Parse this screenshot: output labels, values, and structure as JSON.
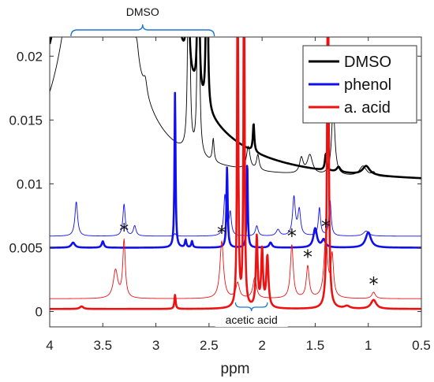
{
  "chart_data": {
    "type": "line",
    "xlabel": "ppm",
    "ylabel": "",
    "xlim": [
      4,
      0.5
    ],
    "ylim": [
      -0.0012,
      0.0215
    ],
    "x_reversed": true,
    "grid": false,
    "legend_position": "top-right",
    "colors": {
      "dmso": "#000000",
      "phenol": "#1010ee",
      "acid": "#ee1111",
      "bracket": "#1f77d4"
    },
    "x_ticks": [
      {
        "value": 4,
        "label": "4"
      },
      {
        "value": 3.5,
        "label": "3.5"
      },
      {
        "value": 3,
        "label": "3"
      },
      {
        "value": 2.5,
        "label": "2.5"
      },
      {
        "value": 2,
        "label": "2"
      },
      {
        "value": 1.5,
        "label": "1.5"
      },
      {
        "value": 1,
        "label": "1"
      },
      {
        "value": 0.5,
        "label": "0.5"
      }
    ],
    "y_ticks": [
      {
        "value": 0,
        "label": "0"
      },
      {
        "value": 0.005,
        "label": "0.005"
      },
      {
        "value": 0.01,
        "label": "0.01"
      },
      {
        "value": 0.015,
        "label": "0.015"
      },
      {
        "value": 0.02,
        "label": "0.02"
      }
    ],
    "legend": [
      {
        "label": "DMSO",
        "key": "dmso"
      },
      {
        "label": "phenol",
        "key": "phenol"
      },
      {
        "label": "a. acid",
        "key": "acid"
      }
    ],
    "annotations": {
      "dmso_bracket": {
        "label": "DMSO",
        "x_start": 3.8,
        "x_end": 2.45
      },
      "acetic_bracket": {
        "label": "acetic acid",
        "x_start": 2.25,
        "x_end": 1.95
      },
      "stars": [
        {
          "label": "*",
          "x": 3.3
        },
        {
          "label": "*",
          "x": 2.38
        },
        {
          "label": "*",
          "x": 1.72
        },
        {
          "label": "*",
          "x": 1.57
        },
        {
          "label": "*",
          "x": 1.4
        },
        {
          "label": "*",
          "x": 0.95
        }
      ]
    },
    "series": [
      {
        "key": "dmso",
        "name": "DMSO",
        "variant": "thin",
        "baseline": 0.0103,
        "peaks": [
          {
            "x": 3.55,
            "h": 0.05,
            "w": 0.18
          },
          {
            "x": 3.18,
            "h": 0.0014,
            "w": 0.02
          },
          {
            "x": 3.1,
            "h": 0.0011,
            "w": 0.02
          },
          {
            "x": 2.69,
            "h": 0.03,
            "w": 0.008
          },
          {
            "x": 2.6,
            "h": 0.03,
            "w": 0.008
          },
          {
            "x": 2.46,
            "h": 0.0018,
            "w": 0.01
          },
          {
            "x": 2.13,
            "h": 0.0018,
            "w": 0.02
          },
          {
            "x": 2.04,
            "h": 0.0012,
            "w": 0.015
          },
          {
            "x": 1.63,
            "h": 0.0012,
            "w": 0.02
          },
          {
            "x": 1.55,
            "h": 0.0015,
            "w": 0.03
          },
          {
            "x": 1.33,
            "h": 0.0055,
            "w": 0.018
          },
          {
            "x": 1.05,
            "h": 0.0008,
            "w": 0.04
          },
          {
            "x": 0.95,
            "h": 0.0003,
            "w": 0.02
          }
        ]
      },
      {
        "key": "dmso",
        "name": "DMSO",
        "variant": "thick",
        "baseline": 0.0099,
        "peaks": [
          {
            "x": 3.38,
            "h": 0.2,
            "w": 0.15
          },
          {
            "x": 2.82,
            "h": 0.03,
            "w": 0.006
          },
          {
            "x": 2.7,
            "h": 0.03,
            "w": 0.006
          },
          {
            "x": 2.6,
            "h": 0.03,
            "w": 0.006
          },
          {
            "x": 2.52,
            "h": 0.03,
            "w": 0.006
          },
          {
            "x": 2.08,
            "h": 0.0022,
            "w": 0.008
          },
          {
            "x": 1.4,
            "h": 0.0013,
            "w": 0.01
          },
          {
            "x": 1.28,
            "h": 0.0004,
            "w": 0.02
          },
          {
            "x": 1.02,
            "h": 0.0007,
            "w": 0.04
          }
        ]
      },
      {
        "key": "phenol",
        "name": "phenol",
        "variant": "thin",
        "baseline": 0.0059,
        "peaks": [
          {
            "x": 3.75,
            "h": 0.0027,
            "w": 0.015
          },
          {
            "x": 3.3,
            "h": 0.0025,
            "w": 0.013
          },
          {
            "x": 3.2,
            "h": 0.0008,
            "w": 0.015
          },
          {
            "x": 2.82,
            "h": 0.0002,
            "w": 0.01
          },
          {
            "x": 2.35,
            "h": 0.0032,
            "w": 0.013
          },
          {
            "x": 2.3,
            "h": 0.0018,
            "w": 0.013
          },
          {
            "x": 2.05,
            "h": 0.0008,
            "w": 0.015
          },
          {
            "x": 1.85,
            "h": 0.0005,
            "w": 0.02
          },
          {
            "x": 1.7,
            "h": 0.003,
            "w": 0.015
          },
          {
            "x": 1.65,
            "h": 0.002,
            "w": 0.015
          },
          {
            "x": 1.46,
            "h": 0.0022,
            "w": 0.012
          },
          {
            "x": 1.36,
            "h": 0.0028,
            "w": 0.012
          },
          {
            "x": 1.02,
            "h": 0.0004,
            "w": 0.03
          }
        ]
      },
      {
        "key": "phenol",
        "name": "phenol",
        "variant": "thick",
        "baseline": 0.005,
        "peaks": [
          {
            "x": 3.78,
            "h": 0.0004,
            "w": 0.02
          },
          {
            "x": 3.5,
            "h": 0.0005,
            "w": 0.012
          },
          {
            "x": 2.82,
            "h": 0.0122,
            "w": 0.006
          },
          {
            "x": 2.72,
            "h": 0.0006,
            "w": 0.008
          },
          {
            "x": 2.66,
            "h": 0.0005,
            "w": 0.008
          },
          {
            "x": 2.33,
            "h": 0.0063,
            "w": 0.007
          },
          {
            "x": 2.14,
            "h": 0.0068,
            "w": 0.006
          },
          {
            "x": 1.92,
            "h": 0.0004,
            "w": 0.015
          },
          {
            "x": 1.5,
            "h": 0.0015,
            "w": 0.02
          },
          {
            "x": 1.42,
            "h": 0.0006,
            "w": 0.02
          },
          {
            "x": 1.0,
            "h": 0.0012,
            "w": 0.03
          }
        ]
      },
      {
        "key": "acid",
        "name": "a. acid",
        "variant": "thin",
        "baseline": 0.001,
        "peaks": [
          {
            "x": 3.38,
            "h": 0.0022,
            "w": 0.025
          },
          {
            "x": 3.3,
            "h": 0.0045,
            "w": 0.014
          },
          {
            "x": 2.38,
            "h": 0.0045,
            "w": 0.02
          },
          {
            "x": 2.23,
            "h": 0.0012,
            "w": 0.02
          },
          {
            "x": 2.07,
            "h": 0.0016,
            "w": 0.02
          },
          {
            "x": 1.72,
            "h": 0.0042,
            "w": 0.016
          },
          {
            "x": 1.57,
            "h": 0.0025,
            "w": 0.016
          },
          {
            "x": 1.4,
            "h": 0.0048,
            "w": 0.02
          },
          {
            "x": 1.34,
            "h": 0.0032,
            "w": 0.015
          },
          {
            "x": 0.95,
            "h": 0.0005,
            "w": 0.02
          }
        ]
      },
      {
        "key": "acid",
        "name": "a. acid",
        "variant": "thick",
        "baseline": 0.0002,
        "peaks": [
          {
            "x": 3.7,
            "h": 0.0002,
            "w": 0.02
          },
          {
            "x": 2.82,
            "h": 0.0011,
            "w": 0.007
          },
          {
            "x": 2.23,
            "h": 0.03,
            "w": 0.006
          },
          {
            "x": 2.17,
            "h": 0.03,
            "w": 0.006
          },
          {
            "x": 2.05,
            "h": 0.0055,
            "w": 0.01
          },
          {
            "x": 2.0,
            "h": 0.0045,
            "w": 0.01
          },
          {
            "x": 1.95,
            "h": 0.004,
            "w": 0.012
          },
          {
            "x": 1.38,
            "h": 0.03,
            "w": 0.008
          },
          {
            "x": 1.2,
            "h": 0.0002,
            "w": 0.03
          },
          {
            "x": 0.95,
            "h": 0.0007,
            "w": 0.03
          }
        ]
      }
    ]
  }
}
